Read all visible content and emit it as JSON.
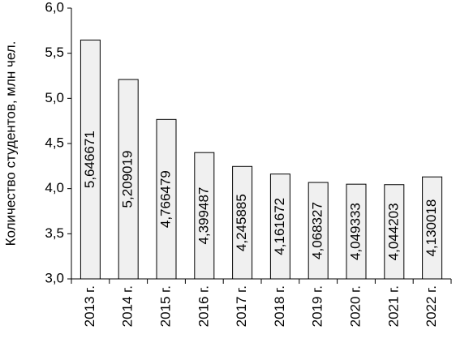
{
  "chart_data": {
    "type": "bar",
    "y_label": "Количество студентов, млн чел.",
    "categories": [
      "2013 г.",
      "2014 г.",
      "2015 г.",
      "2016 г.",
      "2017 г.",
      "2018 г.",
      "2019 г.",
      "2020 г.",
      "2021 г.",
      "2022 г."
    ],
    "values": [
      5.646671,
      5.209019,
      4.766479,
      4.399487,
      4.245885,
      4.161672,
      4.068327,
      4.049333,
      4.044203,
      4.130018
    ],
    "value_labels": [
      "5,646671",
      "5,209019",
      "4,766479",
      "4,399487",
      "4,245885",
      "4,161672",
      "4,068327",
      "4,049333",
      "4,044203",
      "4,130018"
    ],
    "color": "#f0f0f0",
    "ylim": [
      3.0,
      6.0
    ],
    "yticks": [
      {
        "value": 3.0,
        "label": "3,0"
      },
      {
        "value": 3.5,
        "label": "3,5"
      },
      {
        "value": 4.0,
        "label": "4,0"
      },
      {
        "value": 4.5,
        "label": "4,5"
      },
      {
        "value": 5.0,
        "label": "5,0"
      },
      {
        "value": 5.5,
        "label": "5,5"
      },
      {
        "value": 6.0,
        "label": "6,0"
      }
    ],
    "grid": false
  }
}
